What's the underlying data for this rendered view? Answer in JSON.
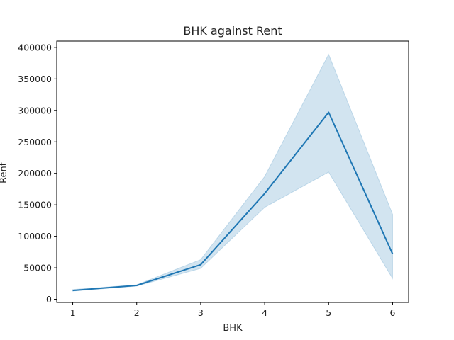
{
  "chart_data": {
    "type": "line",
    "title": "BHK against Rent",
    "xlabel": "BHK",
    "ylabel": "Rent",
    "xlim": [
      0.75,
      6.25
    ],
    "ylim": [
      -5000,
      410000
    ],
    "xticks": [
      1,
      2,
      3,
      4,
      5,
      6
    ],
    "yticks": [
      0,
      50000,
      100000,
      150000,
      200000,
      250000,
      300000,
      350000,
      400000
    ],
    "grid": false,
    "series": [
      {
        "x": [
          1,
          2,
          3,
          4,
          5,
          6
        ],
        "y": [
          14000,
          22000,
          55000,
          168000,
          297000,
          72000
        ],
        "ci_lower": [
          13000,
          21000,
          49000,
          146000,
          202000,
          33000
        ],
        "ci_upper": [
          15500,
          23000,
          63000,
          195000,
          389000,
          135000
        ],
        "color": "#1f77b4"
      }
    ]
  }
}
